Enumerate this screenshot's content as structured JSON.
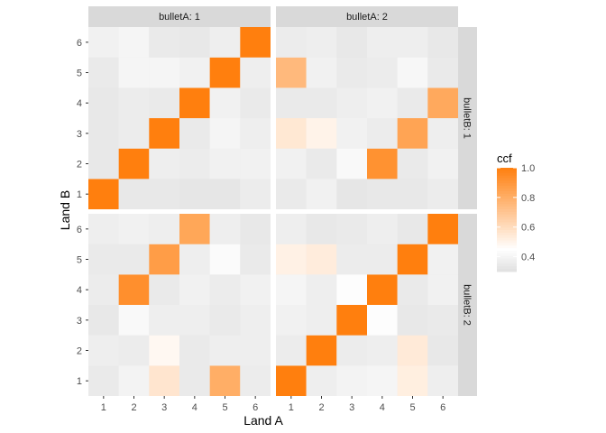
{
  "chart_data": {
    "type": "heatmap",
    "xlabel": "Land A",
    "ylabel": "Land B",
    "x_ticks": [
      "1",
      "2",
      "3",
      "4",
      "5",
      "6"
    ],
    "y_ticks": [
      "1",
      "2",
      "3",
      "4",
      "5",
      "6"
    ],
    "col_facet_labels": [
      "bulletA: 1",
      "bulletA: 2"
    ],
    "row_facet_labels": [
      "bulletB: 1",
      "bulletB: 2"
    ],
    "legend": {
      "title": "ccf",
      "min": 0.3,
      "max": 1.0,
      "midpoint": 0.45,
      "ticks": [
        0.4,
        0.6,
        0.8,
        1.0
      ],
      "tick_labels": [
        "0.4",
        "0.6",
        "0.8",
        "1.0"
      ],
      "position": "right"
    },
    "colors": {
      "low": "#e0e0e0",
      "mid": "#ffffff",
      "high": "#ff7f0e",
      "strip": "#d9d9d9",
      "panel": "#ebebeb"
    },
    "panels": [
      {
        "bulletA": "1",
        "bulletB": "1",
        "values": [
          [
            1.0,
            0.34,
            0.34,
            0.33,
            0.33,
            0.36
          ],
          [
            0.34,
            1.0,
            0.37,
            0.36,
            0.38,
            0.38
          ],
          [
            0.34,
            0.36,
            1.0,
            0.35,
            0.4,
            0.37
          ],
          [
            0.34,
            0.36,
            0.35,
            1.0,
            0.38,
            0.35
          ],
          [
            0.35,
            0.4,
            0.4,
            0.38,
            1.0,
            0.37
          ],
          [
            0.38,
            0.4,
            0.35,
            0.34,
            0.37,
            1.0
          ]
        ]
      },
      {
        "bulletA": "2",
        "bulletB": "1",
        "values": [
          [
            0.35,
            0.38,
            0.33,
            0.34,
            0.34,
            0.36
          ],
          [
            0.38,
            0.35,
            0.42,
            0.92,
            0.35,
            0.38
          ],
          [
            0.55,
            0.5,
            0.38,
            0.36,
            0.84,
            0.37
          ],
          [
            0.35,
            0.35,
            0.37,
            0.38,
            0.35,
            0.82
          ],
          [
            0.75,
            0.38,
            0.35,
            0.36,
            0.41,
            0.35
          ],
          [
            0.36,
            0.37,
            0.34,
            0.37,
            0.37,
            0.34
          ]
        ]
      },
      {
        "bulletA": "1",
        "bulletB": "2",
        "values": [
          [
            0.35,
            0.39,
            0.56,
            0.35,
            0.8,
            0.36
          ],
          [
            0.37,
            0.36,
            0.48,
            0.35,
            0.37,
            0.37
          ],
          [
            0.34,
            0.42,
            0.37,
            0.37,
            0.35,
            0.37
          ],
          [
            0.36,
            0.93,
            0.35,
            0.38,
            0.36,
            0.38
          ],
          [
            0.35,
            0.35,
            0.87,
            0.37,
            0.43,
            0.35
          ],
          [
            0.37,
            0.38,
            0.37,
            0.83,
            0.37,
            0.34
          ]
        ]
      },
      {
        "bulletA": "2",
        "bulletB": "2",
        "values": [
          [
            1.0,
            0.37,
            0.39,
            0.4,
            0.52,
            0.37
          ],
          [
            0.36,
            1.0,
            0.36,
            0.37,
            0.54,
            0.34
          ],
          [
            0.38,
            0.37,
            1.0,
            0.44,
            0.34,
            0.35
          ],
          [
            0.4,
            0.37,
            0.44,
            1.0,
            0.35,
            0.38
          ],
          [
            0.51,
            0.53,
            0.36,
            0.36,
            1.0,
            0.38
          ],
          [
            0.37,
            0.34,
            0.35,
            0.37,
            0.34,
            1.0
          ]
        ]
      }
    ]
  }
}
